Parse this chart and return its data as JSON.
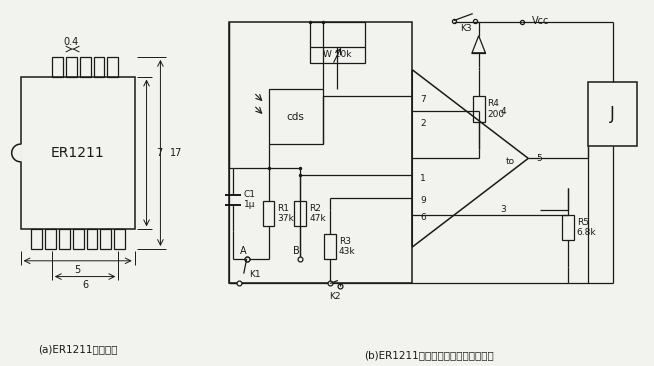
{
  "bg_color": "#f2f2ee",
  "line_color": "#1a1a1a",
  "label_a": "(a)ER1211外形尺寸",
  "label_b": "(b)ER1211在自动曝光相机中的应用图",
  "chip_label": "ER1211",
  "dim_04": "0.4",
  "dim_7": "7",
  "dim_17": "17",
  "dim_5": "5",
  "dim_6": "6",
  "cap_c1": "C1\n1μ",
  "res_r1": "R1\n37k",
  "res_r2": "R2\n47k",
  "res_r3": "R3\n43k",
  "res_r4": "R4\n200",
  "res_r5": "R5\n6.8k",
  "pot_w": "W 10k",
  "cds_label": "cds",
  "k1_label": "K1",
  "k2_label": "K2",
  "k3_label": "K3",
  "vcc_label": "Vcc",
  "j_label": "J",
  "node_a": "A",
  "node_b": "B",
  "pin1": "1",
  "pin2": "2",
  "pin3": "3",
  "pin4": "4",
  "pin5": "5",
  "pin6": "6",
  "pin7": "7",
  "pin9": "9",
  "pin_to": "to"
}
